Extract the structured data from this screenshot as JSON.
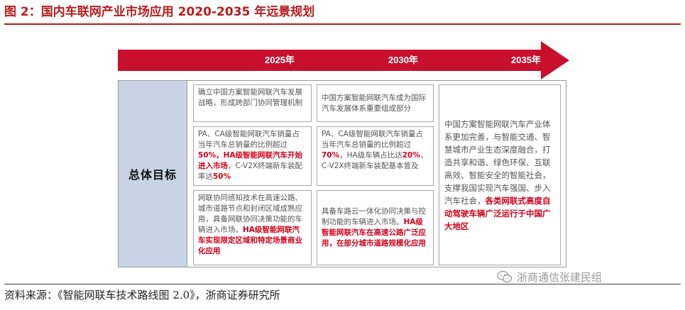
{
  "figure": {
    "title": "图 2：国内车联网产业市场应用 2020-2035 年远景规划"
  },
  "timeline": {
    "years": [
      "2025年",
      "2030年",
      "2035年"
    ],
    "arrow_color": "#c8102e"
  },
  "row_label": "总体目标",
  "col2025": {
    "box1": "确立中国方案智能网联汽车发展战略，形成跨部门协同管理机制",
    "box2": {
      "t1": "PA、CA级智能网联汽车销量占当年汽车总销量的比例超过",
      "h1": "50%，HA级智能网联汽车开始进入市场",
      "t2": "，C-V2X终端新车装配率达",
      "h2": "50%"
    },
    "box3": {
      "t1": "网联协同感知技术在高速公路、城市道路节点和封闭区域成熟应用，具备网联协同决策功能的车辆进入市场。",
      "h1": "HA级智能网联汽车实现限定区域和特定场景商业化应用"
    }
  },
  "col2030": {
    "box1": "中国方案智能网联汽车成为国际汽车发展体系重要组成部分",
    "box2": {
      "t1": "PA、CA级智能网联汽车销量占当年汽车总销量的比例超过",
      "h1": "70%",
      "t2": "，HA级车辆占比达",
      "h2": "20%",
      "t3": "，C-V2X终端新车装配基本普及"
    },
    "box3": {
      "t1": "具备车路云一体化协同决策与控制功能的车辆进入市场。",
      "h1": "HA级智能网联汽车在高速公路广泛应用，在部分城市道路规模化应用"
    }
  },
  "col2035": {
    "t1": "中国方案智能网联汽车产业体系更加完善，与智能交通、智慧城市产业生态深度融合，打造共享和谐、绿色环保、互联高效、智能安全的智能社会，支撑我国实现汽车强国、步入汽车社会，",
    "h1": "各类网联式高度自动驾驶车辆广泛运行于中国广大地区"
  },
  "watermark": "浙商通信张建民组",
  "source": "资料来源：《智能网联车技术路线图 2.0》，浙商证券研究所",
  "colors": {
    "title_red": "#b71c1c",
    "highlight_red": "#d0021b",
    "label_bg": "#c8d4e6"
  }
}
